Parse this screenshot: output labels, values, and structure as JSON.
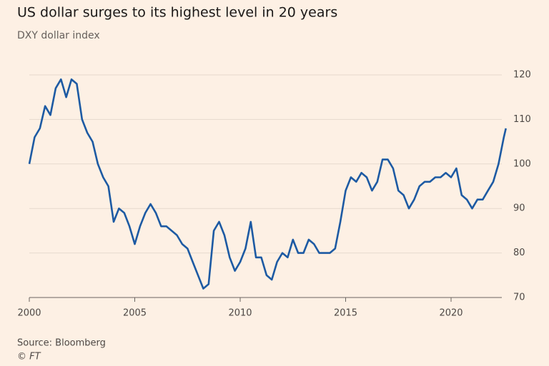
{
  "chart_data": {
    "type": "line",
    "title": "US dollar surges to its highest level in 20 years",
    "subtitle": "DXY dollar index",
    "source": "Source: Bloomberg",
    "credit": "© FT",
    "x": [
      2000.0,
      2000.25,
      2000.5,
      2000.75,
      2001.0,
      2001.25,
      2001.5,
      2001.75,
      2002.0,
      2002.25,
      2002.5,
      2002.75,
      2003.0,
      2003.25,
      2003.5,
      2003.75,
      2004.0,
      2004.25,
      2004.5,
      2004.75,
      2005.0,
      2005.25,
      2005.5,
      2005.75,
      2006.0,
      2006.25,
      2006.5,
      2006.75,
      2007.0,
      2007.25,
      2007.5,
      2007.75,
      2008.0,
      2008.25,
      2008.5,
      2008.75,
      2009.0,
      2009.25,
      2009.5,
      2009.75,
      2010.0,
      2010.25,
      2010.5,
      2010.75,
      2011.0,
      2011.25,
      2011.5,
      2011.75,
      2012.0,
      2012.25,
      2012.5,
      2012.75,
      2013.0,
      2013.25,
      2013.5,
      2013.75,
      2014.0,
      2014.25,
      2014.5,
      2014.75,
      2015.0,
      2015.25,
      2015.5,
      2015.75,
      2016.0,
      2016.25,
      2016.5,
      2016.75,
      2017.0,
      2017.25,
      2017.5,
      2017.75,
      2018.0,
      2018.25,
      2018.5,
      2018.75,
      2019.0,
      2019.25,
      2019.5,
      2019.75,
      2020.0,
      2020.25,
      2020.5,
      2020.75,
      2021.0,
      2021.25,
      2021.5,
      2021.75,
      2022.0,
      2022.25,
      2022.5,
      2022.6
    ],
    "series": [
      {
        "name": "DXY dollar index",
        "color": "#1d5aa3",
        "values": [
          100,
          106,
          108,
          113,
          111,
          117,
          119,
          115,
          119,
          118,
          110,
          107,
          105,
          100,
          97,
          95,
          87,
          90,
          89,
          86,
          82,
          86,
          89,
          91,
          89,
          86,
          86,
          85,
          84,
          82,
          81,
          78,
          75,
          72,
          73,
          85,
          87,
          84,
          79,
          76,
          78,
          81,
          87,
          79,
          79,
          75,
          74,
          78,
          80,
          79,
          83,
          80,
          80,
          83,
          82,
          80,
          80,
          80,
          81,
          87,
          94,
          97,
          96,
          98,
          97,
          94,
          96,
          101,
          101,
          99,
          94,
          93,
          90,
          92,
          95,
          96,
          96,
          97,
          97,
          98,
          97,
          99,
          93,
          92,
          90,
          92,
          92,
          94,
          96,
          100,
          106,
          108
        ]
      }
    ],
    "xlim": [
      2000,
      2022.7
    ],
    "xticks": [
      2000,
      2005,
      2010,
      2015,
      2020
    ],
    "ylim": [
      70,
      120
    ],
    "yticks": [
      70,
      80,
      90,
      100,
      110,
      120
    ],
    "grid": true
  }
}
